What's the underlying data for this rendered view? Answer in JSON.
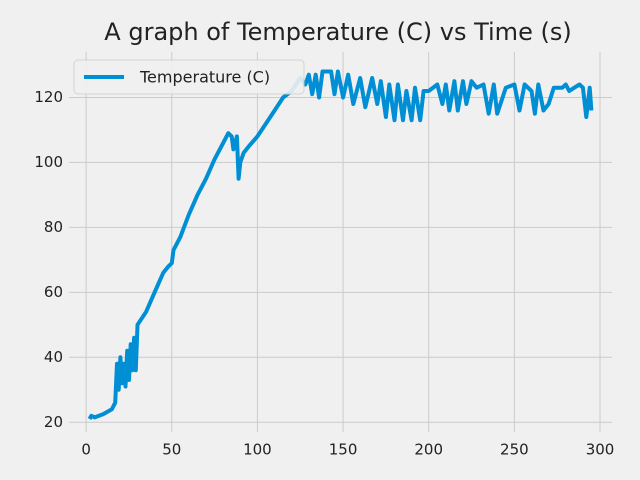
{
  "chart_data": {
    "type": "line",
    "title": "A graph of Temperature (C) vs Time (s)",
    "x": [
      2,
      3,
      5,
      10,
      15,
      17,
      18,
      19,
      20,
      21,
      22,
      23,
      24,
      25,
      26,
      27,
      28,
      29,
      30,
      35,
      40,
      45,
      48,
      50,
      51,
      55,
      60,
      65,
      70,
      75,
      80,
      83,
      85,
      86,
      88,
      89,
      90,
      92,
      95,
      100,
      105,
      110,
      115,
      120,
      125,
      128,
      130,
      132,
      134,
      136,
      138,
      140,
      143,
      145,
      147,
      150,
      153,
      156,
      160,
      163,
      167,
      170,
      172,
      175,
      177,
      180,
      182,
      185,
      187,
      190,
      192,
      195,
      197,
      200,
      205,
      208,
      210,
      212,
      215,
      217,
      220,
      222,
      225,
      228,
      232,
      235,
      238,
      240,
      245,
      250,
      253,
      256,
      260,
      262,
      264,
      267,
      270,
      273,
      278,
      280,
      282,
      285,
      288,
      290,
      292,
      294,
      295
    ],
    "series": [
      {
        "name": "Temperature (C)",
        "color": "#008fd5",
        "values": [
          21,
          22,
          21.5,
          22.5,
          24,
          26,
          38,
          30,
          40,
          32,
          38,
          31,
          42,
          33,
          44,
          36,
          46,
          36,
          50,
          54,
          60,
          66,
          68,
          69,
          73,
          77,
          84,
          90,
          95,
          101,
          106,
          109,
          108,
          104,
          108,
          95,
          100,
          103,
          105,
          108,
          112,
          116,
          120,
          122,
          126,
          124,
          127,
          121,
          127,
          120,
          128,
          128,
          128,
          121,
          128,
          120,
          127,
          118,
          126,
          117,
          126,
          118,
          125,
          114,
          124,
          113,
          124,
          113,
          122,
          113,
          123,
          113,
          122,
          122,
          124,
          118,
          124,
          116,
          125,
          116,
          125,
          118,
          125,
          123,
          124,
          115,
          124,
          115,
          123,
          124,
          116,
          124,
          122,
          115,
          124,
          116,
          118,
          123,
          123,
          124,
          122,
          123,
          124,
          123,
          114,
          123,
          116
        ]
      }
    ],
    "xlim": [
      -10,
      307
    ],
    "ylim": [
      17,
      134
    ],
    "xticks": [
      0,
      50,
      100,
      150,
      200,
      250,
      300
    ],
    "yticks": [
      20,
      40,
      60,
      80,
      100,
      120
    ],
    "grid": true,
    "legend": "upper left"
  }
}
